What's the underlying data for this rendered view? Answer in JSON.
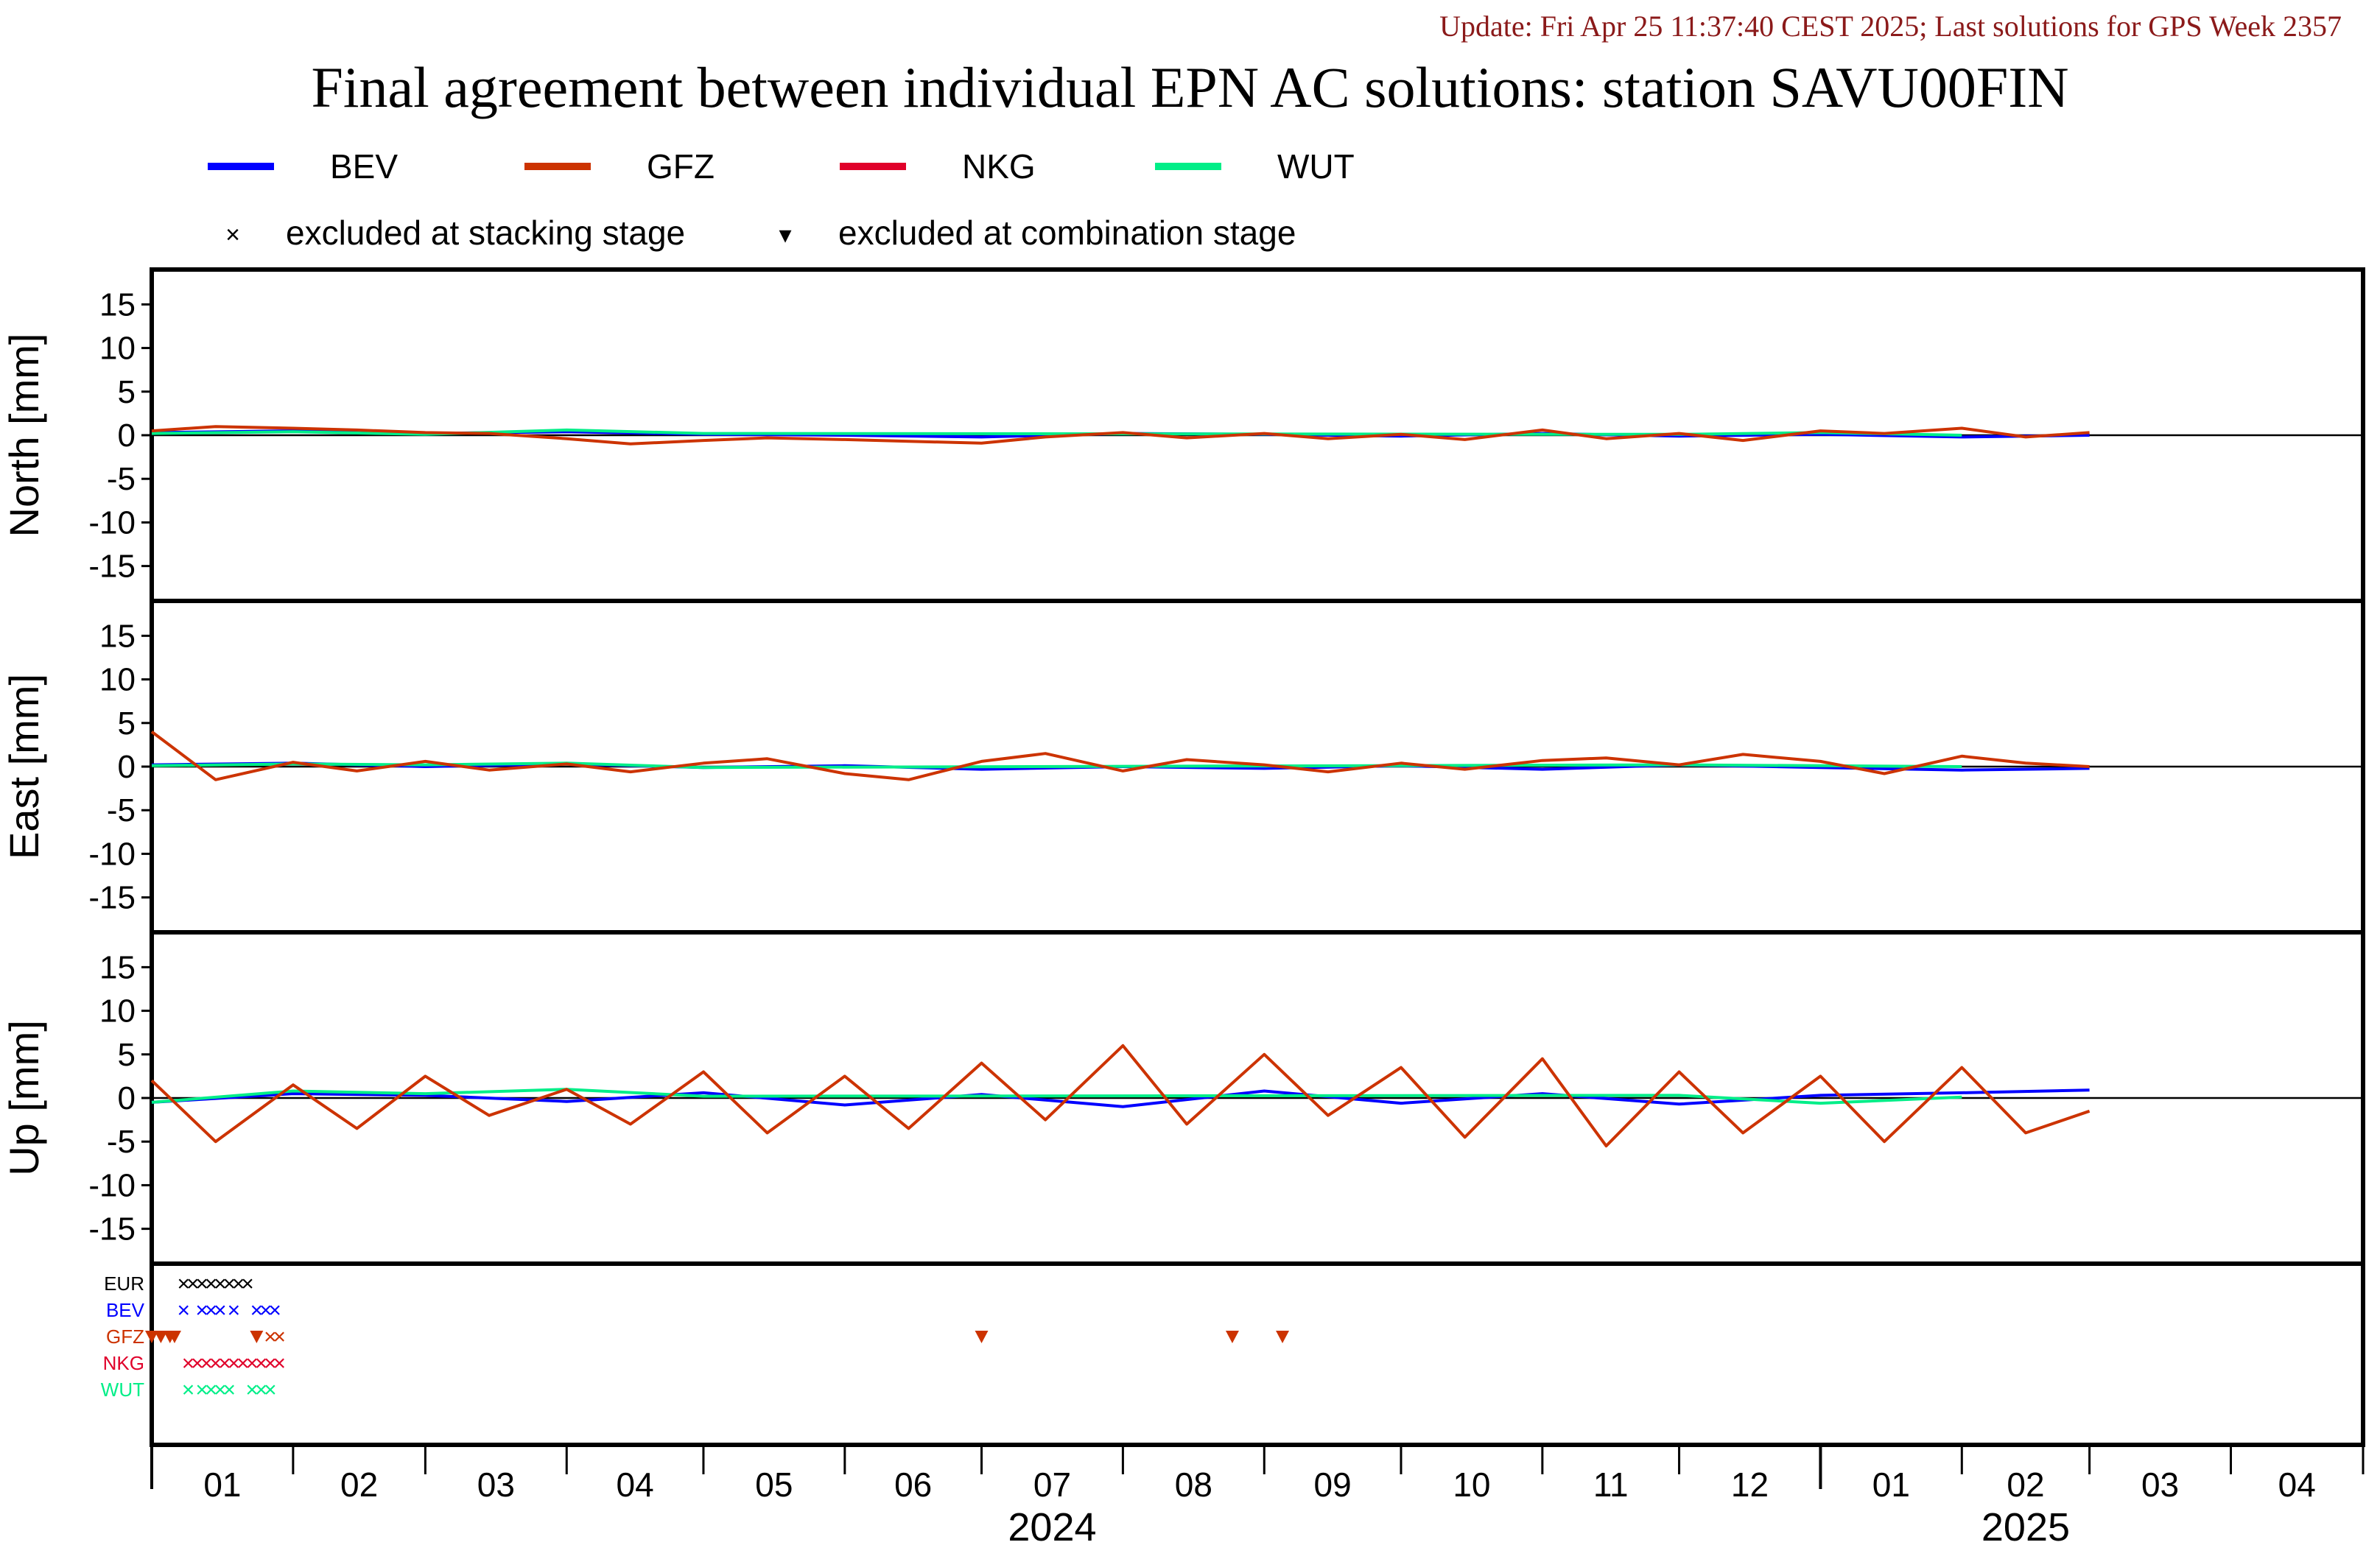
{
  "header": {
    "update": "Update: Fri Apr 25 11:37:40 CEST 2025; Last solutions for GPS Week 2357",
    "title": "Final agreement between individual EPN AC solutions: station SAVU00FIN"
  },
  "legend": {
    "series": [
      {
        "name": "BEV",
        "color": "#0000ff"
      },
      {
        "name": "GFZ",
        "color": "#cc3300"
      },
      {
        "name": "NKG",
        "color": "#e0002a"
      },
      {
        "name": "WUT",
        "color": "#00ee88"
      }
    ],
    "markers": [
      {
        "symbol": "×",
        "label": "excluded at stacking stage"
      },
      {
        "symbol": "▾",
        "label": "excluded at combination stage"
      }
    ]
  },
  "chart_data": {
    "type": "line",
    "x_range": [
      "2024-01-01",
      "2025-04-30"
    ],
    "y_range": [
      -19,
      19
    ],
    "y_ticks": [
      15,
      10,
      5,
      0,
      -5,
      -10,
      -15
    ],
    "months": [
      "01",
      "02",
      "03",
      "04",
      "05",
      "06",
      "07",
      "08",
      "09",
      "10",
      "11",
      "12",
      "01",
      "02",
      "03",
      "04"
    ],
    "years": [
      {
        "label": "2024",
        "month_index": 6
      },
      {
        "label": "2025",
        "month_index": 13
      }
    ],
    "panels": [
      {
        "ylabel": "North [mm]",
        "series": [
          {
            "name": "GFZ",
            "x": [
              "2024-01-01",
              "2024-01-15",
              "2024-02-01",
              "2024-02-15",
              "2024-03-01",
              "2024-03-15",
              "2024-04-01",
              "2024-04-15",
              "2024-05-01",
              "2024-05-15",
              "2024-06-01",
              "2024-06-15",
              "2024-07-01",
              "2024-07-15",
              "2024-08-01",
              "2024-08-15",
              "2024-09-01",
              "2024-09-15",
              "2024-10-01",
              "2024-10-15",
              "2024-11-01",
              "2024-11-15",
              "2024-12-01",
              "2024-12-15",
              "2025-01-01",
              "2025-01-15",
              "2025-02-01",
              "2025-02-15",
              "2025-03-01"
            ],
            "y": [
              0.5,
              1.0,
              0.8,
              0.6,
              0.3,
              0.2,
              -0.4,
              -1.0,
              -0.6,
              -0.3,
              -0.5,
              -0.7,
              -0.9,
              -0.2,
              0.3,
              -0.3,
              0.2,
              -0.4,
              0.1,
              -0.5,
              0.6,
              -0.4,
              0.2,
              -0.6,
              0.5,
              0.2,
              0.8,
              -0.2,
              0.3
            ]
          },
          {
            "name": "BEV",
            "x": [
              "2024-01-01",
              "2024-02-01",
              "2024-03-01",
              "2024-04-01",
              "2024-05-01",
              "2024-06-01",
              "2024-07-01",
              "2024-08-01",
              "2024-09-01",
              "2024-10-01",
              "2024-11-01",
              "2024-12-01",
              "2025-01-01",
              "2025-02-01",
              "2025-03-01"
            ],
            "y": [
              0.3,
              0.5,
              0.2,
              0.4,
              0.1,
              0.0,
              -0.2,
              0.2,
              0.1,
              -0.1,
              0.2,
              -0.1,
              0.1,
              -0.2,
              0.0
            ]
          },
          {
            "name": "WUT",
            "x": [
              "2024-01-01",
              "2024-02-01",
              "2024-03-01",
              "2024-04-01",
              "2024-05-01",
              "2024-12-01",
              "2025-01-01",
              "2025-02-01"
            ],
            "y": [
              0.2,
              0.4,
              0.1,
              0.6,
              0.2,
              0.1,
              0.3,
              0.0
            ]
          }
        ]
      },
      {
        "ylabel": "East [mm]",
        "series": [
          {
            "name": "GFZ",
            "x": [
              "2024-01-01",
              "2024-01-15",
              "2024-02-01",
              "2024-02-15",
              "2024-03-01",
              "2024-03-15",
              "2024-04-01",
              "2024-04-15",
              "2024-05-01",
              "2024-05-15",
              "2024-06-01",
              "2024-06-15",
              "2024-07-01",
              "2024-07-15",
              "2024-08-01",
              "2024-08-15",
              "2024-09-01",
              "2024-09-15",
              "2024-10-01",
              "2024-10-15",
              "2024-11-01",
              "2024-11-15",
              "2024-12-01",
              "2024-12-15",
              "2025-01-01",
              "2025-01-15",
              "2025-02-01",
              "2025-02-15",
              "2025-03-01"
            ],
            "y": [
              4.0,
              -1.5,
              0.5,
              -0.5,
              0.6,
              -0.4,
              0.3,
              -0.6,
              0.4,
              0.9,
              -0.8,
              -1.5,
              0.6,
              1.5,
              -0.5,
              0.8,
              0.2,
              -0.6,
              0.4,
              -0.3,
              0.7,
              1.0,
              0.2,
              1.4,
              0.6,
              -0.8,
              1.2,
              0.4,
              0.0
            ]
          },
          {
            "name": "BEV",
            "x": [
              "2024-01-01",
              "2024-02-01",
              "2024-03-01",
              "2024-04-01",
              "2024-05-01",
              "2024-06-01",
              "2024-07-01",
              "2024-08-01",
              "2024-09-01",
              "2024-10-01",
              "2024-11-01",
              "2024-12-01",
              "2025-01-01",
              "2025-02-01",
              "2025-03-01"
            ],
            "y": [
              0.2,
              0.4,
              0.0,
              0.3,
              -0.1,
              0.1,
              -0.3,
              0.0,
              -0.2,
              0.1,
              -0.3,
              0.2,
              -0.1,
              -0.4,
              -0.2
            ]
          },
          {
            "name": "WUT",
            "x": [
              "2024-01-01",
              "2024-02-01",
              "2024-03-01",
              "2024-04-01",
              "2024-05-01",
              "2024-12-01",
              "2025-01-01",
              "2025-02-01"
            ],
            "y": [
              0.1,
              0.3,
              0.2,
              0.4,
              -0.1,
              0.2,
              0.1,
              0.0
            ]
          }
        ]
      },
      {
        "ylabel": "Up [mm]",
        "series": [
          {
            "name": "GFZ",
            "x": [
              "2024-01-01",
              "2024-01-15",
              "2024-02-01",
              "2024-02-15",
              "2024-03-01",
              "2024-03-15",
              "2024-04-01",
              "2024-04-15",
              "2024-05-01",
              "2024-05-15",
              "2024-06-01",
              "2024-06-15",
              "2024-07-01",
              "2024-07-15",
              "2024-08-01",
              "2024-08-15",
              "2024-09-01",
              "2024-09-15",
              "2024-10-01",
              "2024-10-15",
              "2024-11-01",
              "2024-11-15",
              "2024-12-01",
              "2024-12-15",
              "2025-01-01",
              "2025-01-15",
              "2025-02-01",
              "2025-02-15",
              "2025-03-01"
            ],
            "y": [
              2.0,
              -5.0,
              1.5,
              -3.5,
              2.5,
              -2.0,
              1.0,
              -3.0,
              3.0,
              -4.0,
              2.5,
              -3.5,
              4.0,
              -2.5,
              6.0,
              -3.0,
              5.0,
              -2.0,
              3.5,
              -4.5,
              4.5,
              -5.5,
              3.0,
              -4.0,
              2.5,
              -5.0,
              3.5,
              -4.0,
              -1.5
            ]
          },
          {
            "name": "BEV",
            "x": [
              "2024-01-01",
              "2024-02-01",
              "2024-03-01",
              "2024-04-01",
              "2024-05-01",
              "2024-06-01",
              "2024-07-01",
              "2024-08-01",
              "2024-09-01",
              "2024-10-01",
              "2024-11-01",
              "2024-12-01",
              "2025-01-01",
              "2025-02-01",
              "2025-03-01"
            ],
            "y": [
              -0.5,
              0.5,
              0.3,
              -0.4,
              0.6,
              -0.8,
              0.4,
              -1.0,
              0.8,
              -0.6,
              0.5,
              -0.7,
              0.3,
              0.6,
              0.9
            ]
          },
          {
            "name": "WUT",
            "x": [
              "2024-01-01",
              "2024-02-01",
              "2024-03-01",
              "2024-04-01",
              "2024-05-01",
              "2024-12-01",
              "2025-01-01",
              "2025-02-01"
            ],
            "y": [
              -0.5,
              0.8,
              0.5,
              1.0,
              0.2,
              0.3,
              -0.6,
              0.1
            ]
          }
        ]
      }
    ],
    "exclusions": {
      "rows": [
        {
          "name": "EUR",
          "color": "#000000"
        },
        {
          "name": "BEV",
          "color": "#0000ff"
        },
        {
          "name": "GFZ",
          "color": "#cc3300"
        },
        {
          "name": "NKG",
          "color": "#e0002a"
        },
        {
          "name": "WUT",
          "color": "#00ee88"
        }
      ],
      "stacking": [
        {
          "row": "EUR",
          "dates": [
            "2024-01-08",
            "2024-01-10",
            "2024-01-12",
            "2024-01-14",
            "2024-01-16",
            "2024-01-18",
            "2024-01-20",
            "2024-01-22"
          ]
        },
        {
          "row": "BEV",
          "dates": [
            "2024-01-08",
            "2024-01-12",
            "2024-01-14",
            "2024-01-16",
            "2024-01-19",
            "2024-01-24",
            "2024-01-26",
            "2024-01-28"
          ]
        },
        {
          "row": "GFZ",
          "dates": [
            "2024-01-27",
            "2024-01-29"
          ]
        },
        {
          "row": "NKG",
          "dates": [
            "2024-01-09",
            "2024-01-11",
            "2024-01-13",
            "2024-01-15",
            "2024-01-17",
            "2024-01-19",
            "2024-01-21",
            "2024-01-23",
            "2024-01-25",
            "2024-01-27",
            "2024-01-29"
          ]
        },
        {
          "row": "WUT",
          "dates": [
            "2024-01-09",
            "2024-01-12",
            "2024-01-14",
            "2024-01-16",
            "2024-01-18",
            "2024-01-23",
            "2024-01-25",
            "2024-01-27"
          ]
        }
      ],
      "combination": [
        {
          "row": "GFZ",
          "dates": [
            "2024-01-01",
            "2024-01-03",
            "2024-01-05",
            "2024-01-06",
            "2024-01-24",
            "2024-07-01",
            "2024-08-25",
            "2024-09-05"
          ]
        }
      ]
    }
  }
}
